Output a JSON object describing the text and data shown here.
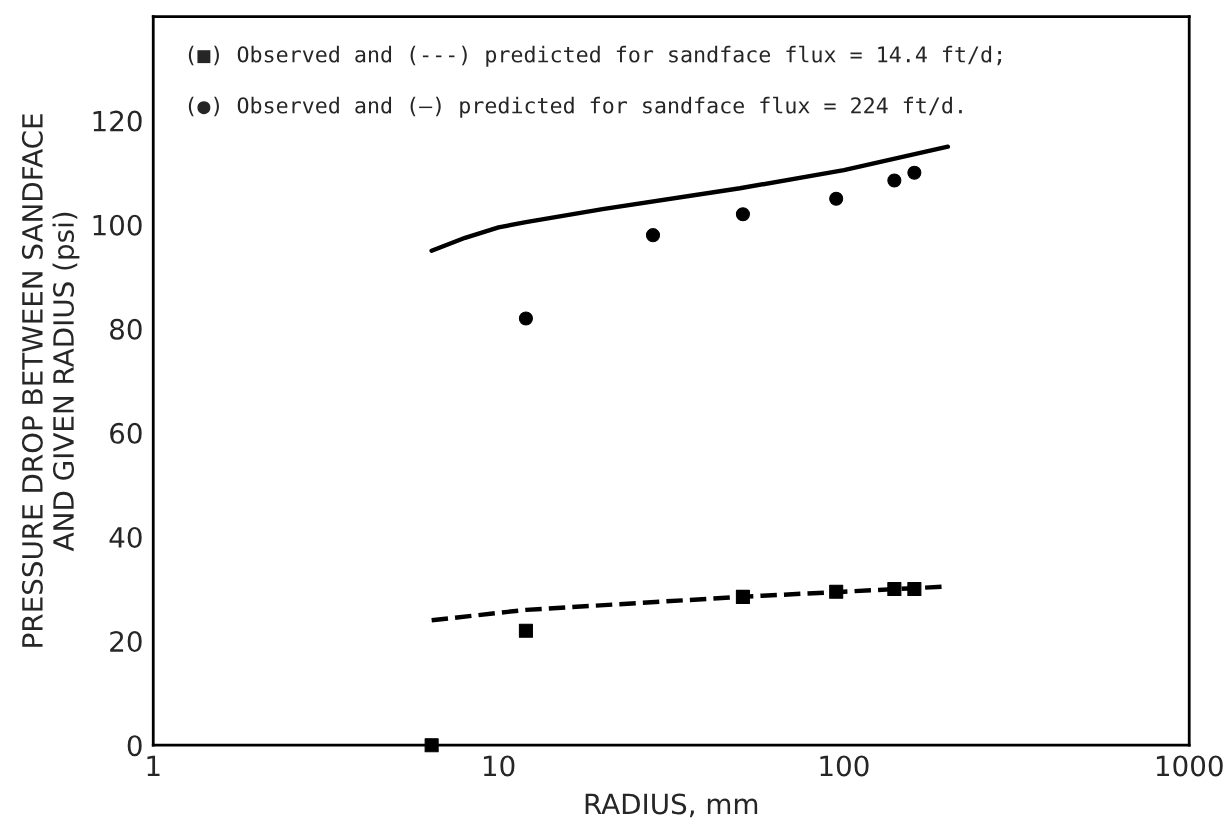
{
  "chart_data": {
    "type": "scatter",
    "xlabel": "RADIUS, mm",
    "ylabel": "PRESSURE DROP BETWEEN SANDFACE\nAND GIVEN RADIUS (psi)",
    "annotations": [
      "(■) Observed and (---) predicted for sandface flux = 14.4 ft/d;",
      "(●) Observed and (—) predicted for sandface flux = 224 ft/d."
    ],
    "log": "x",
    "xlim": [
      1,
      1000
    ],
    "xticks": [
      1,
      10,
      100,
      1000
    ],
    "ylim": [
      0,
      140
    ],
    "yticks": [
      0,
      20,
      40,
      60,
      80,
      100,
      120
    ],
    "grid": false,
    "series": [
      {
        "marker": "square",
        "color": "#000000",
        "x": [
          6.4,
          12,
          51,
          95,
          140,
          160
        ],
        "values": [
          0,
          22,
          28.5,
          29.5,
          30,
          30
        ]
      },
      {
        "type": "line",
        "line_style": "dashed",
        "marker": "none",
        "color": "#000000",
        "x": [
          6.4,
          12,
          50,
          100,
          200
        ],
        "values": [
          24,
          26,
          28.5,
          29.5,
          30.5
        ]
      },
      {
        "marker": "circle",
        "color": "#000000",
        "x": [
          12,
          28,
          51,
          95,
          140,
          160
        ],
        "values": [
          82,
          98,
          102,
          105,
          108.5,
          110
        ]
      },
      {
        "type": "line",
        "line_style": "solid",
        "marker": "none",
        "color": "#000000",
        "x": [
          6.4,
          8,
          10,
          12,
          20,
          50,
          100,
          200
        ],
        "values": [
          95,
          97.5,
          99.5,
          100.5,
          103,
          107,
          110.5,
          115
        ]
      }
    ]
  }
}
